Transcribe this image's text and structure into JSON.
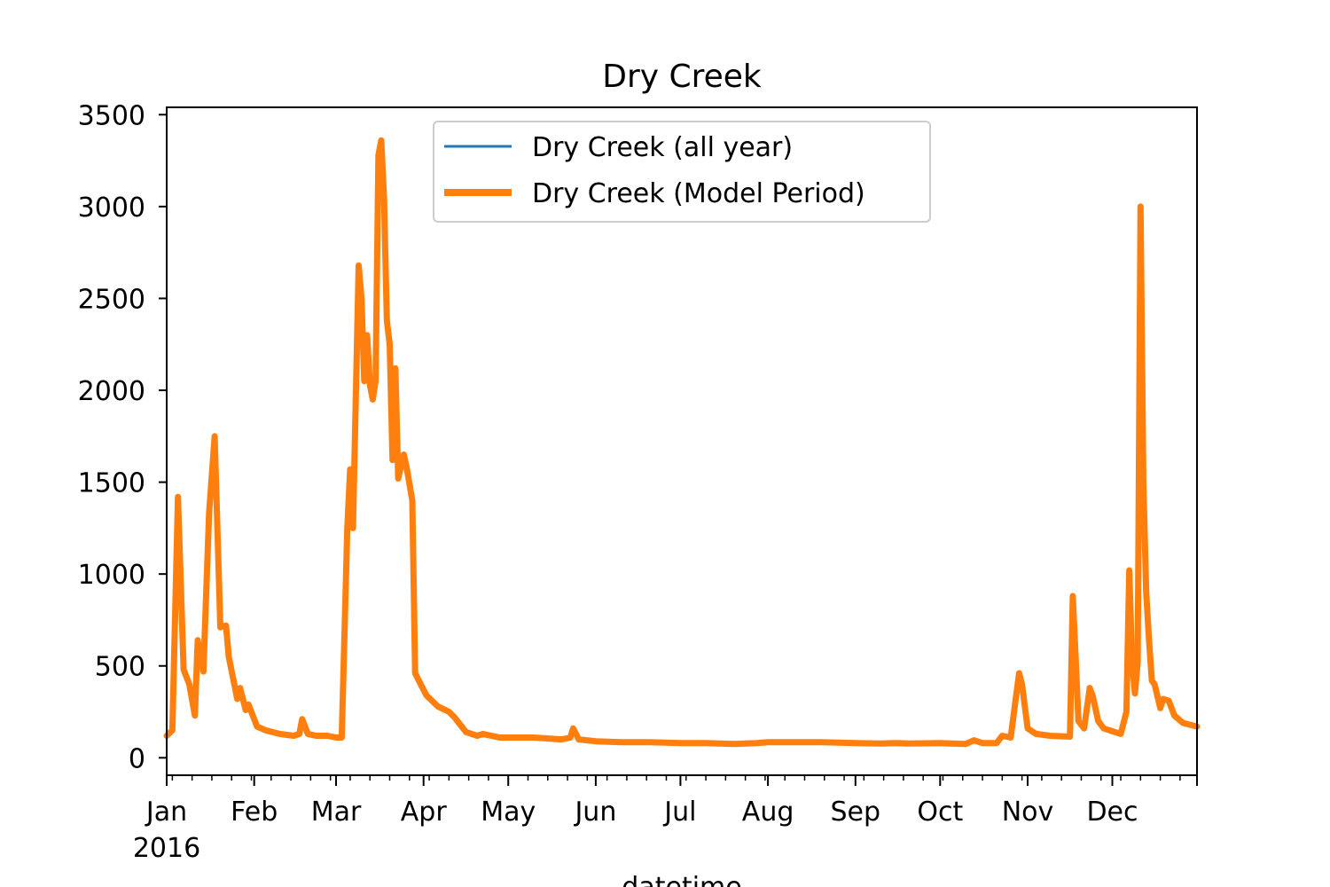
{
  "chart_data": {
    "type": "line",
    "title": "Dry Creek",
    "xlabel": "datetime",
    "ylabel": "",
    "x_year_label": "2016",
    "xlim": [
      "2016-01-01",
      "2016-12-31"
    ],
    "ylim": [
      -95,
      3540
    ],
    "y_ticks": [
      0,
      500,
      1000,
      1500,
      2000,
      2500,
      3000,
      3500
    ],
    "x_ticks": [
      {
        "date": "2016-01-01",
        "label": "Jan"
      },
      {
        "date": "2016-02-01",
        "label": "Feb"
      },
      {
        "date": "2016-03-01",
        "label": "Mar"
      },
      {
        "date": "2016-04-01",
        "label": "Apr"
      },
      {
        "date": "2016-05-01",
        "label": "May"
      },
      {
        "date": "2016-06-01",
        "label": "Jun"
      },
      {
        "date": "2016-07-01",
        "label": "Jul"
      },
      {
        "date": "2016-08-01",
        "label": "Aug"
      },
      {
        "date": "2016-09-01",
        "label": "Sep"
      },
      {
        "date": "2016-10-01",
        "label": "Oct"
      },
      {
        "date": "2016-11-01",
        "label": "Nov"
      },
      {
        "date": "2016-12-01",
        "label": "Dec"
      }
    ],
    "grid": false,
    "legend_position": "top-center",
    "series": [
      {
        "name": "Dry Creek (all year)",
        "color": "#1f77b4",
        "points": [
          [
            "2016-01-01",
            120
          ],
          [
            "2016-01-03",
            150
          ],
          [
            "2016-01-05",
            1420
          ],
          [
            "2016-01-07",
            480
          ],
          [
            "2016-01-09",
            400
          ],
          [
            "2016-01-11",
            230
          ],
          [
            "2016-01-12",
            640
          ],
          [
            "2016-01-14",
            470
          ],
          [
            "2016-01-16",
            1330
          ],
          [
            "2016-01-18",
            1750
          ],
          [
            "2016-01-20",
            710
          ],
          [
            "2016-01-22",
            720
          ],
          [
            "2016-01-23",
            550
          ],
          [
            "2016-01-26",
            320
          ],
          [
            "2016-01-27",
            380
          ],
          [
            "2016-01-29",
            260
          ],
          [
            "2016-01-30",
            290
          ],
          [
            "2016-02-02",
            170
          ],
          [
            "2016-02-05",
            150
          ],
          [
            "2016-02-10",
            130
          ],
          [
            "2016-02-15",
            120
          ],
          [
            "2016-02-17",
            130
          ],
          [
            "2016-02-18",
            210
          ],
          [
            "2016-02-20",
            130
          ],
          [
            "2016-02-23",
            120
          ],
          [
            "2016-02-27",
            120
          ],
          [
            "2016-03-01",
            110
          ],
          [
            "2016-03-03",
            110
          ],
          [
            "2016-03-05",
            1250
          ],
          [
            "2016-03-06",
            1570
          ],
          [
            "2016-03-07",
            1250
          ],
          [
            "2016-03-09",
            2680
          ],
          [
            "2016-03-10",
            2500
          ],
          [
            "2016-03-11",
            2050
          ],
          [
            "2016-03-12",
            2300
          ],
          [
            "2016-03-13",
            2030
          ],
          [
            "2016-03-14",
            1950
          ],
          [
            "2016-03-15",
            2050
          ],
          [
            "2016-03-16",
            3280
          ],
          [
            "2016-03-17",
            3360
          ],
          [
            "2016-03-18",
            3050
          ],
          [
            "2016-03-19",
            2380
          ],
          [
            "2016-03-20",
            2250
          ],
          [
            "2016-03-21",
            1620
          ],
          [
            "2016-03-22",
            2120
          ],
          [
            "2016-03-23",
            1520
          ],
          [
            "2016-03-25",
            1650
          ],
          [
            "2016-03-26",
            1580
          ],
          [
            "2016-03-28",
            1400
          ],
          [
            "2016-03-29",
            460
          ],
          [
            "2016-03-31",
            400
          ],
          [
            "2016-04-02",
            340
          ],
          [
            "2016-04-06",
            280
          ],
          [
            "2016-04-10",
            250
          ],
          [
            "2016-04-12",
            220
          ],
          [
            "2016-04-14",
            180
          ],
          [
            "2016-04-16",
            140
          ],
          [
            "2016-04-20",
            120
          ],
          [
            "2016-04-22",
            130
          ],
          [
            "2016-04-28",
            110
          ],
          [
            "2016-05-05",
            110
          ],
          [
            "2016-05-10",
            110
          ],
          [
            "2016-05-20",
            100
          ],
          [
            "2016-05-23",
            110
          ],
          [
            "2016-05-24",
            160
          ],
          [
            "2016-05-26",
            100
          ],
          [
            "2016-06-01",
            90
          ],
          [
            "2016-06-10",
            85
          ],
          [
            "2016-06-20",
            85
          ],
          [
            "2016-07-01",
            80
          ],
          [
            "2016-07-10",
            80
          ],
          [
            "2016-07-20",
            75
          ],
          [
            "2016-07-28",
            80
          ],
          [
            "2016-08-01",
            85
          ],
          [
            "2016-08-10",
            85
          ],
          [
            "2016-08-20",
            85
          ],
          [
            "2016-09-01",
            80
          ],
          [
            "2016-09-10",
            78
          ],
          [
            "2016-09-15",
            80
          ],
          [
            "2016-09-20",
            78
          ],
          [
            "2016-10-01",
            80
          ],
          [
            "2016-10-05",
            78
          ],
          [
            "2016-10-10",
            75
          ],
          [
            "2016-10-13",
            95
          ],
          [
            "2016-10-16",
            80
          ],
          [
            "2016-10-21",
            80
          ],
          [
            "2016-10-23",
            120
          ],
          [
            "2016-10-26",
            110
          ],
          [
            "2016-10-27",
            230
          ],
          [
            "2016-10-29",
            460
          ],
          [
            "2016-10-30",
            400
          ],
          [
            "2016-11-01",
            160
          ],
          [
            "2016-11-04",
            130
          ],
          [
            "2016-11-09",
            120
          ],
          [
            "2016-11-16",
            115
          ],
          [
            "2016-11-17",
            880
          ],
          [
            "2016-11-18",
            550
          ],
          [
            "2016-11-19",
            200
          ],
          [
            "2016-11-21",
            160
          ],
          [
            "2016-11-23",
            380
          ],
          [
            "2016-11-24",
            340
          ],
          [
            "2016-11-26",
            200
          ],
          [
            "2016-11-28",
            160
          ],
          [
            "2016-12-04",
            130
          ],
          [
            "2016-12-06",
            250
          ],
          [
            "2016-12-07",
            1020
          ],
          [
            "2016-12-08",
            520
          ],
          [
            "2016-12-09",
            350
          ],
          [
            "2016-12-10",
            520
          ],
          [
            "2016-12-11",
            3000
          ],
          [
            "2016-12-12",
            1500
          ],
          [
            "2016-12-13",
            900
          ],
          [
            "2016-12-14",
            640
          ],
          [
            "2016-12-15",
            420
          ],
          [
            "2016-12-16",
            400
          ],
          [
            "2016-12-18",
            270
          ],
          [
            "2016-12-19",
            320
          ],
          [
            "2016-12-21",
            310
          ],
          [
            "2016-12-23",
            230
          ],
          [
            "2016-12-26",
            190
          ],
          [
            "2016-12-31",
            170
          ]
        ]
      },
      {
        "name": "Dry Creek (Model Period)",
        "color": "#ff7f0e",
        "points": [
          [
            "2016-01-01",
            120
          ],
          [
            "2016-01-03",
            150
          ],
          [
            "2016-01-05",
            1420
          ],
          [
            "2016-01-07",
            480
          ],
          [
            "2016-01-09",
            400
          ],
          [
            "2016-01-11",
            230
          ],
          [
            "2016-01-12",
            640
          ],
          [
            "2016-01-14",
            470
          ],
          [
            "2016-01-16",
            1330
          ],
          [
            "2016-01-18",
            1750
          ],
          [
            "2016-01-20",
            710
          ],
          [
            "2016-01-22",
            720
          ],
          [
            "2016-01-23",
            550
          ],
          [
            "2016-01-26",
            320
          ],
          [
            "2016-01-27",
            380
          ],
          [
            "2016-01-29",
            260
          ],
          [
            "2016-01-30",
            290
          ],
          [
            "2016-02-02",
            170
          ],
          [
            "2016-02-05",
            150
          ],
          [
            "2016-02-10",
            130
          ],
          [
            "2016-02-15",
            120
          ],
          [
            "2016-02-17",
            130
          ],
          [
            "2016-02-18",
            210
          ],
          [
            "2016-02-20",
            130
          ],
          [
            "2016-02-23",
            120
          ],
          [
            "2016-02-27",
            120
          ],
          [
            "2016-03-01",
            110
          ],
          [
            "2016-03-03",
            110
          ],
          [
            "2016-03-05",
            1250
          ],
          [
            "2016-03-06",
            1570
          ],
          [
            "2016-03-07",
            1250
          ],
          [
            "2016-03-09",
            2680
          ],
          [
            "2016-03-10",
            2500
          ],
          [
            "2016-03-11",
            2050
          ],
          [
            "2016-03-12",
            2300
          ],
          [
            "2016-03-13",
            2030
          ],
          [
            "2016-03-14",
            1950
          ],
          [
            "2016-03-15",
            2050
          ],
          [
            "2016-03-16",
            3280
          ],
          [
            "2016-03-17",
            3360
          ],
          [
            "2016-03-18",
            3050
          ],
          [
            "2016-03-19",
            2380
          ],
          [
            "2016-03-20",
            2250
          ],
          [
            "2016-03-21",
            1620
          ],
          [
            "2016-03-22",
            2120
          ],
          [
            "2016-03-23",
            1520
          ],
          [
            "2016-03-25",
            1650
          ],
          [
            "2016-03-26",
            1580
          ],
          [
            "2016-03-28",
            1400
          ],
          [
            "2016-03-29",
            460
          ],
          [
            "2016-03-31",
            400
          ],
          [
            "2016-04-02",
            340
          ],
          [
            "2016-04-06",
            280
          ],
          [
            "2016-04-10",
            250
          ],
          [
            "2016-04-12",
            220
          ],
          [
            "2016-04-14",
            180
          ],
          [
            "2016-04-16",
            140
          ],
          [
            "2016-04-20",
            120
          ],
          [
            "2016-04-22",
            130
          ],
          [
            "2016-04-28",
            110
          ],
          [
            "2016-05-05",
            110
          ],
          [
            "2016-05-10",
            110
          ],
          [
            "2016-05-20",
            100
          ],
          [
            "2016-05-23",
            110
          ],
          [
            "2016-05-24",
            160
          ],
          [
            "2016-05-26",
            100
          ],
          [
            "2016-06-01",
            90
          ],
          [
            "2016-06-10",
            85
          ],
          [
            "2016-06-20",
            85
          ],
          [
            "2016-07-01",
            80
          ],
          [
            "2016-07-10",
            80
          ],
          [
            "2016-07-20",
            75
          ],
          [
            "2016-07-28",
            80
          ],
          [
            "2016-08-01",
            85
          ],
          [
            "2016-08-10",
            85
          ],
          [
            "2016-08-20",
            85
          ],
          [
            "2016-09-01",
            80
          ],
          [
            "2016-09-10",
            78
          ],
          [
            "2016-09-15",
            80
          ],
          [
            "2016-09-20",
            78
          ],
          [
            "2016-10-01",
            80
          ],
          [
            "2016-10-05",
            78
          ],
          [
            "2016-10-10",
            75
          ],
          [
            "2016-10-13",
            95
          ],
          [
            "2016-10-16",
            80
          ],
          [
            "2016-10-21",
            80
          ],
          [
            "2016-10-23",
            120
          ],
          [
            "2016-10-26",
            110
          ],
          [
            "2016-10-27",
            230
          ],
          [
            "2016-10-29",
            460
          ],
          [
            "2016-10-30",
            400
          ],
          [
            "2016-11-01",
            160
          ],
          [
            "2016-11-04",
            130
          ],
          [
            "2016-11-09",
            120
          ],
          [
            "2016-11-16",
            115
          ],
          [
            "2016-11-17",
            880
          ],
          [
            "2016-11-18",
            550
          ],
          [
            "2016-11-19",
            200
          ],
          [
            "2016-11-21",
            160
          ],
          [
            "2016-11-23",
            380
          ],
          [
            "2016-11-24",
            340
          ],
          [
            "2016-11-26",
            200
          ],
          [
            "2016-11-28",
            160
          ],
          [
            "2016-12-04",
            130
          ],
          [
            "2016-12-06",
            250
          ],
          [
            "2016-12-07",
            1020
          ],
          [
            "2016-12-08",
            520
          ],
          [
            "2016-12-09",
            350
          ],
          [
            "2016-12-10",
            520
          ],
          [
            "2016-12-11",
            3000
          ],
          [
            "2016-12-12",
            1500
          ],
          [
            "2016-12-13",
            900
          ],
          [
            "2016-12-14",
            640
          ],
          [
            "2016-12-15",
            420
          ],
          [
            "2016-12-16",
            400
          ],
          [
            "2016-12-18",
            270
          ],
          [
            "2016-12-19",
            320
          ],
          [
            "2016-12-21",
            310
          ],
          [
            "2016-12-23",
            230
          ],
          [
            "2016-12-26",
            190
          ],
          [
            "2016-12-31",
            170
          ]
        ]
      }
    ]
  }
}
